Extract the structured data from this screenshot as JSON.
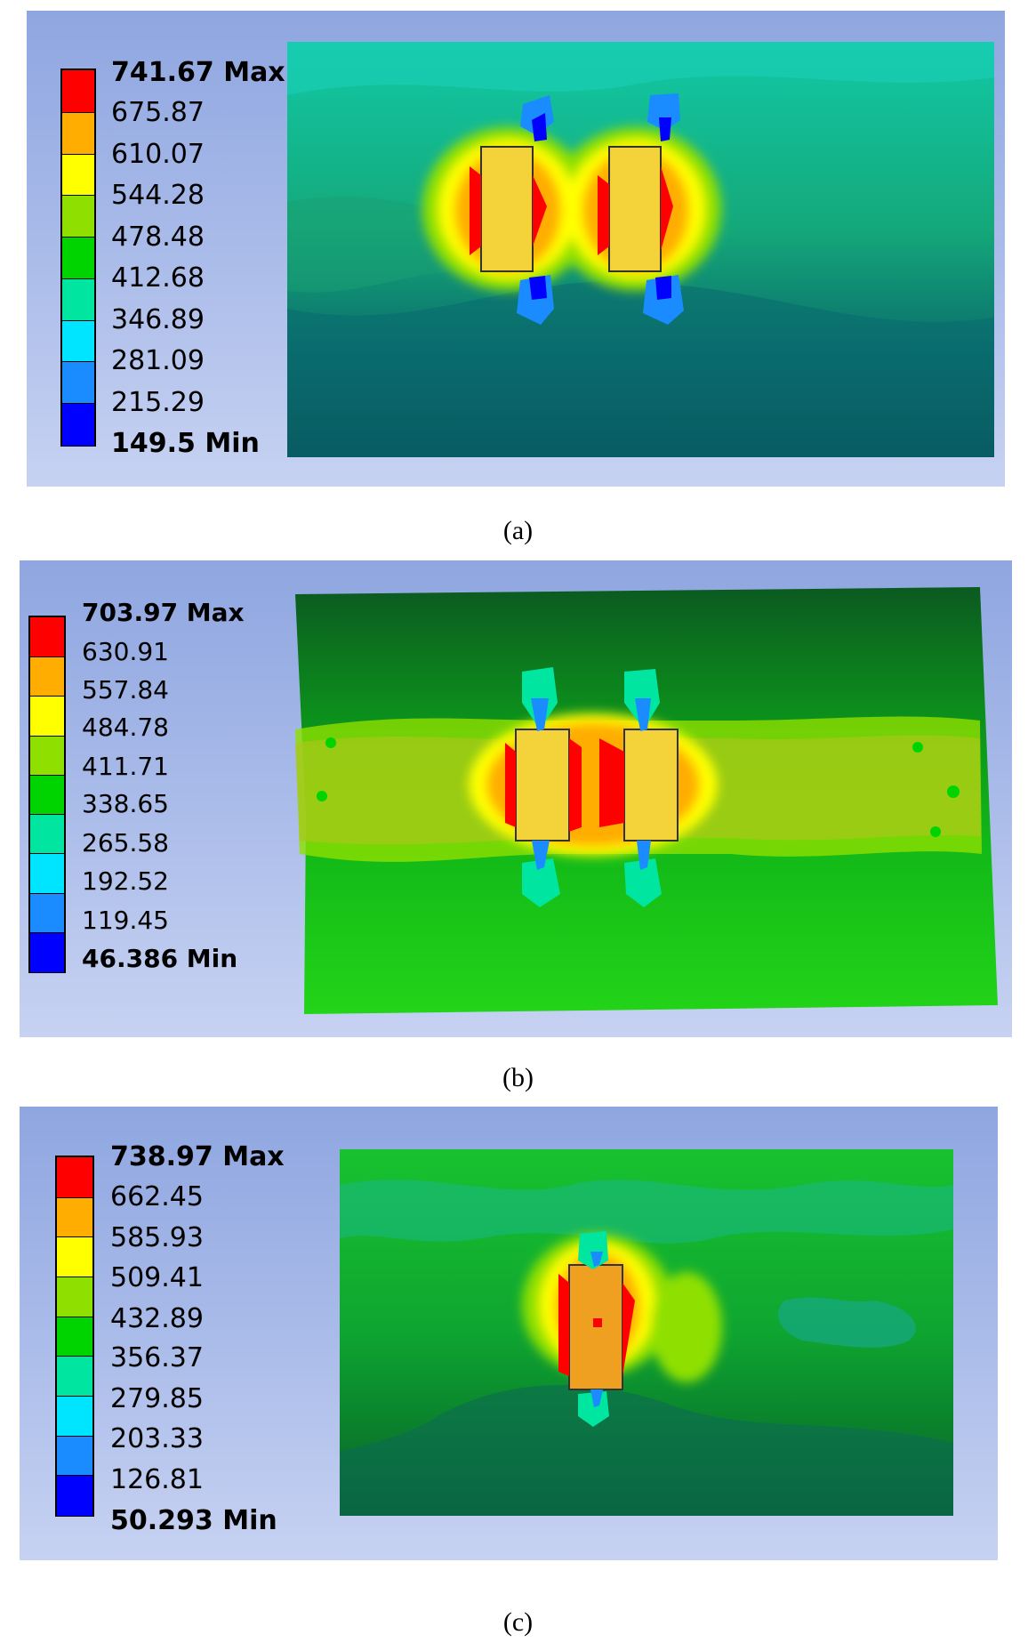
{
  "colors": {
    "scale": [
      "#0000ff",
      "#1a8cff",
      "#00e5ff",
      "#00e6a0",
      "#00d400",
      "#8fe000",
      "#ffff00",
      "#ffad00",
      "#ff0000"
    ],
    "background_top": "#8fa6e0",
    "background_bottom": "#c7d2f2"
  },
  "panels": [
    {
      "caption": "(a)",
      "legend": {
        "max_label": "741.67 Max",
        "ticks": [
          "675.87",
          "610.07",
          "544.28",
          "478.48",
          "412.68",
          "346.89",
          "281.09",
          "215.29"
        ],
        "min_label": "149.5 Min",
        "max_value": 741.67,
        "min_value": 149.5
      }
    },
    {
      "caption": "(b)",
      "legend": {
        "max_label": "703.97 Max",
        "ticks": [
          "630.91",
          "557.84",
          "484.78",
          "411.71",
          "338.65",
          "265.58",
          "192.52",
          "119.45"
        ],
        "min_label": "46.386 Min",
        "max_value": 703.97,
        "min_value": 46.386
      }
    },
    {
      "caption": "(c)",
      "legend": {
        "max_label": "738.97 Max",
        "ticks": [
          "662.45",
          "585.93",
          "509.41",
          "432.89",
          "356.37",
          "279.85",
          "203.33",
          "126.81"
        ],
        "min_label": "50.293 Min",
        "max_value": 738.97,
        "min_value": 50.293
      }
    }
  ]
}
